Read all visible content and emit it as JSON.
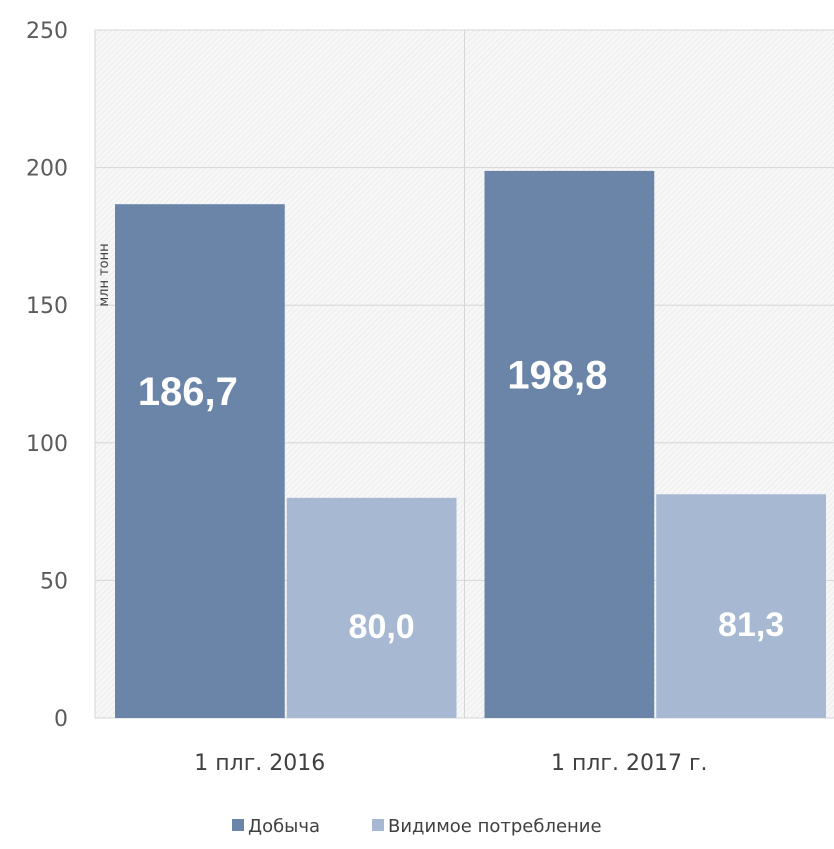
{
  "chart_data": {
    "type": "bar",
    "title": "",
    "ylabel": "млн тонн",
    "ylim": [
      0,
      250
    ],
    "yticks": [
      0,
      50,
      100,
      150,
      200,
      250
    ],
    "grid": true,
    "legend_position": "bottom",
    "categories": [
      "1 плг. 2016",
      "1 плг. 2017 г."
    ],
    "series": [
      {
        "name": "Добыча",
        "values": [
          186.7,
          198.8
        ],
        "labels": [
          "186,7",
          "198,8"
        ],
        "color": "#6b85a8"
      },
      {
        "name": "Видимое потребление",
        "values": [
          80.0,
          81.3
        ],
        "labels": [
          "80,0",
          "81,3"
        ],
        "color": "#a6b8d2"
      }
    ]
  }
}
